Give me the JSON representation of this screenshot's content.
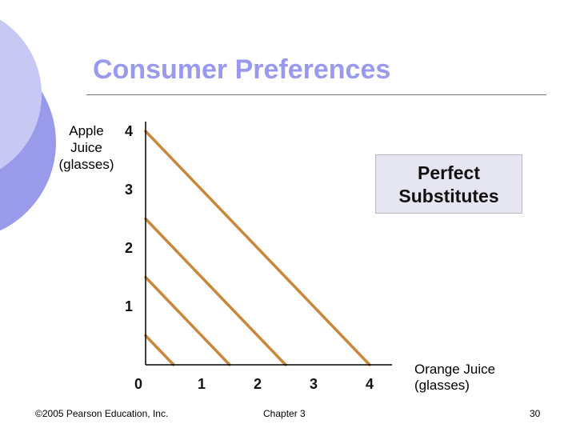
{
  "slide": {
    "title": "Consumer Preferences",
    "callout": "Perfect\nSubstitutes",
    "footer_left": "©2005 Pearson Education, Inc.",
    "footer_center": "Chapter 3",
    "page_number": "30"
  },
  "colors": {
    "title": "#9999ee",
    "deco_light": "#c8c8f5",
    "deco_dark": "#9a9aeb",
    "line": "#c8873a",
    "callout_bg": "#e6e6f3"
  },
  "chart_data": {
    "type": "line",
    "title": "",
    "xlabel": "Orange Juice\n(glasses)",
    "ylabel": "Apple\nJuice\n(glasses)",
    "x_ticks": [
      "0",
      "1",
      "2",
      "3",
      "4"
    ],
    "y_ticks": [
      "1",
      "2",
      "3",
      "4"
    ],
    "xlim": [
      0,
      4
    ],
    "ylim": [
      0,
      4
    ],
    "grid": false,
    "series": [
      {
        "x": [
          0,
          0.5
        ],
        "y": [
          0.5,
          0
        ]
      },
      {
        "x": [
          0,
          1.5
        ],
        "y": [
          1.5,
          0
        ]
      },
      {
        "x": [
          0,
          2.5
        ],
        "y": [
          2.5,
          0
        ]
      },
      {
        "x": [
          0,
          4.0
        ],
        "y": [
          4.0,
          0
        ]
      }
    ]
  }
}
